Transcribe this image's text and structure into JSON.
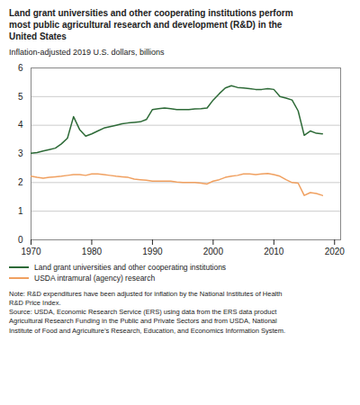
{
  "chart_data": {
    "type": "line",
    "title": "Land grant universities and other cooperating institutions perform\nmost public agricultural research and development (R&D) in the\nUnited States",
    "subtitle": "Inflation-adjusted 2019 U.S. dollars, billions",
    "note": "Note: R&D expenditures have been adjusted for inflation by the National Institutes of Health\nR&D Price Index.\nSource: USDA, Economic Research Service (ERS) using data from the ERS data product\nAgricultural Research Funding in the Public and Private Sectors and from USDA, National\nInstitute of Food and Agriculture’s Research, Education, and Economics Information System.",
    "x": [
      1970,
      1971,
      1972,
      1973,
      1974,
      1975,
      1976,
      1977,
      1978,
      1979,
      1980,
      1981,
      1982,
      1983,
      1984,
      1985,
      1986,
      1987,
      1988,
      1989,
      1990,
      1991,
      1992,
      1993,
      1994,
      1995,
      1996,
      1997,
      1998,
      1999,
      2000,
      2001,
      2002,
      2003,
      2004,
      2005,
      2006,
      2007,
      2008,
      2009,
      2010,
      2011,
      2012,
      2013,
      2014,
      2015,
      2016,
      2017,
      2018
    ],
    "series": [
      {
        "name": "Land grant universities and other cooperating institutions",
        "color": "#2d6a37",
        "values": [
          3.02,
          3.05,
          3.1,
          3.15,
          3.2,
          3.35,
          3.55,
          4.3,
          3.85,
          3.62,
          3.7,
          3.8,
          3.9,
          3.95,
          4.0,
          4.05,
          4.08,
          4.1,
          4.12,
          4.2,
          4.55,
          4.58,
          4.6,
          4.58,
          4.55,
          4.55,
          4.55,
          4.57,
          4.58,
          4.6,
          4.88,
          5.1,
          5.3,
          5.38,
          5.32,
          5.3,
          5.28,
          5.25,
          5.25,
          5.28,
          5.25,
          5.0,
          4.95,
          4.88,
          4.5,
          3.65,
          3.8,
          3.72,
          3.7
        ]
      },
      {
        "name": "USDA intramural (agency) research",
        "color": "#f0a060",
        "values": [
          2.22,
          2.18,
          2.15,
          2.18,
          2.2,
          2.22,
          2.25,
          2.28,
          2.28,
          2.25,
          2.3,
          2.3,
          2.28,
          2.25,
          2.22,
          2.2,
          2.18,
          2.12,
          2.1,
          2.08,
          2.05,
          2.05,
          2.05,
          2.05,
          2.02,
          2.0,
          2.0,
          2.0,
          1.98,
          1.95,
          2.05,
          2.1,
          2.18,
          2.22,
          2.25,
          2.3,
          2.3,
          2.28,
          2.3,
          2.32,
          2.28,
          2.22,
          2.1,
          2.0,
          1.98,
          1.55,
          1.65,
          1.62,
          1.55
        ]
      }
    ],
    "xlim": [
      1970,
      2021
    ],
    "xticks": [
      1970,
      1980,
      1990,
      2000,
      2010,
      2020
    ],
    "ylim": [
      0,
      6
    ],
    "yticks": [
      0,
      1,
      2,
      3,
      4,
      5,
      6
    ],
    "grid": true,
    "legend": "bottom"
  }
}
